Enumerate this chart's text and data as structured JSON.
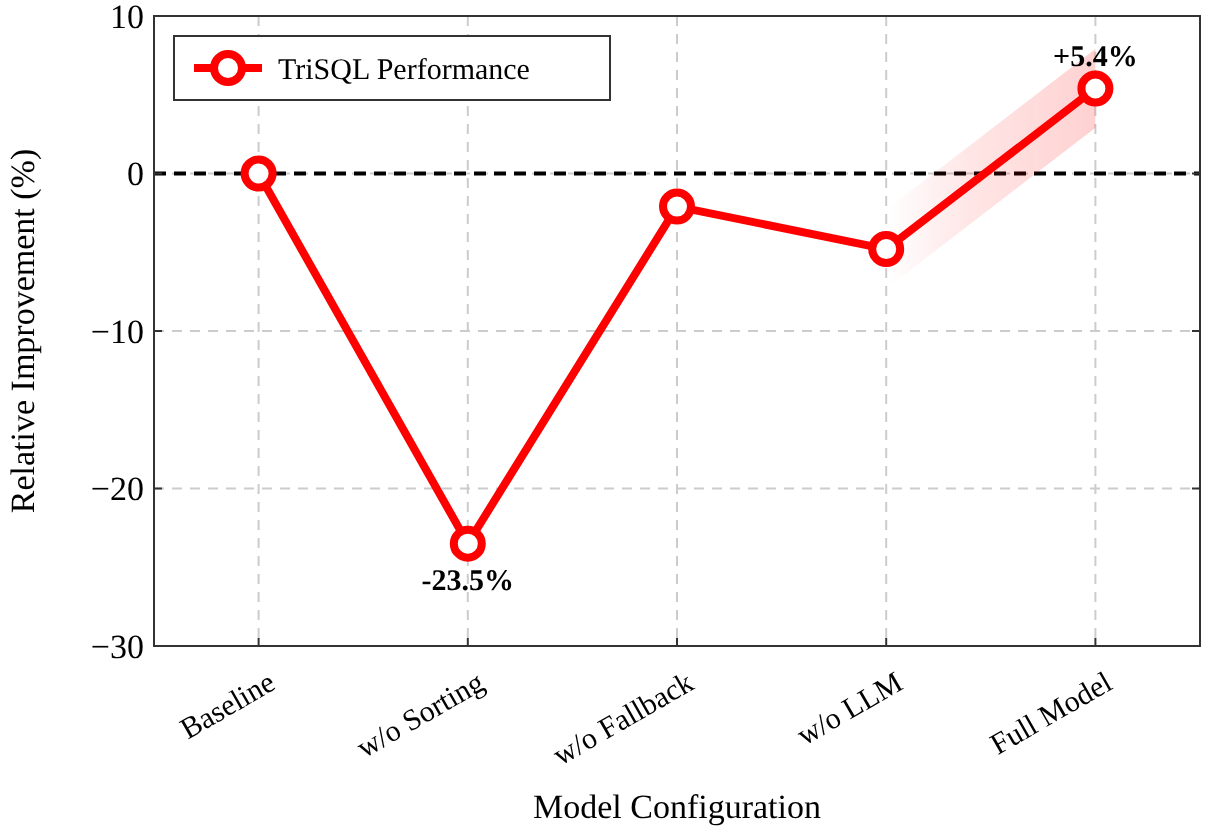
{
  "chart_data": {
    "type": "line",
    "xlabel": "Model Configuration",
    "ylabel": "Relative Improvement (%)",
    "categories": [
      "Baseline",
      "w/o Sorting",
      "w/o Fallback",
      "w/o LLM",
      "Full Model"
    ],
    "series": [
      {
        "name": "TriSQL Performance",
        "color": "#ff0000",
        "values": [
          0,
          -23.5,
          -2.1,
          -4.8,
          5.4
        ],
        "lower": [
          null,
          null,
          null,
          -7.3,
          2.9
        ],
        "upper": [
          null,
          null,
          null,
          -2.3,
          7.9
        ],
        "value_labels": [
          null,
          "-23.5%",
          null,
          null,
          "+5.4%"
        ]
      }
    ],
    "ylim": [
      -30,
      10
    ],
    "yticks": [
      {
        "value": -30,
        "label": "−30"
      },
      {
        "value": -20,
        "label": "−20"
      },
      {
        "value": -10,
        "label": "−10"
      },
      0,
      10
    ],
    "ref_lines": [
      {
        "axis": "y",
        "value": 0,
        "color": "#000000",
        "line_style": "dashed"
      }
    ],
    "grid": true,
    "legend": "top left",
    "marker": "circle",
    "line_style": "solid"
  }
}
